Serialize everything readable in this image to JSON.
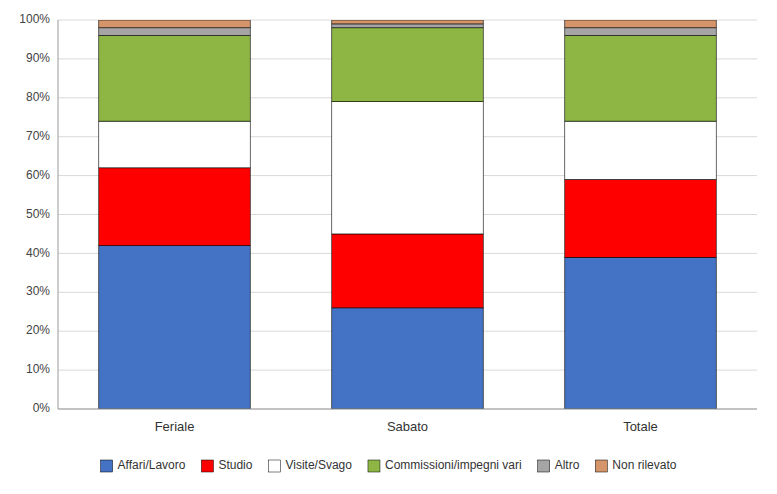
{
  "chart_data": {
    "type": "bar",
    "stacked": true,
    "categories": [
      "Feriale",
      "Sabato",
      "Totale"
    ],
    "series": [
      {
        "name": "Affari/Lavoro",
        "color": "#4472C4",
        "values": [
          42,
          26,
          39
        ]
      },
      {
        "name": "Studio",
        "color": "#FF0000",
        "values": [
          20,
          19,
          20
        ]
      },
      {
        "name": "Visite/Svago",
        "color": "#FFFFFF",
        "values": [
          12,
          34,
          15
        ]
      },
      {
        "name": "Commissioni/impegni vari",
        "color": "#8DB645",
        "values": [
          22,
          19,
          22
        ]
      },
      {
        "name": "Altro",
        "color": "#A5A5A5",
        "values": [
          2,
          1,
          2
        ]
      },
      {
        "name": "Non rilevato",
        "color": "#D4956A",
        "values": [
          2,
          1,
          2
        ]
      }
    ],
    "ylim": [
      0,
      100
    ],
    "yticks": [
      {
        "value": 0,
        "label": "0%"
      },
      {
        "value": 10,
        "label": "10%"
      },
      {
        "value": 20,
        "label": "20%"
      },
      {
        "value": 30,
        "label": "30%"
      },
      {
        "value": 40,
        "label": "40%"
      },
      {
        "value": 50,
        "label": "50%"
      },
      {
        "value": 60,
        "label": "60%"
      },
      {
        "value": 70,
        "label": "70%"
      },
      {
        "value": 80,
        "label": "80%"
      },
      {
        "value": 90,
        "label": "90%"
      },
      {
        "value": 100,
        "label": "100%"
      }
    ],
    "grid": true,
    "legend": "bottom"
  }
}
